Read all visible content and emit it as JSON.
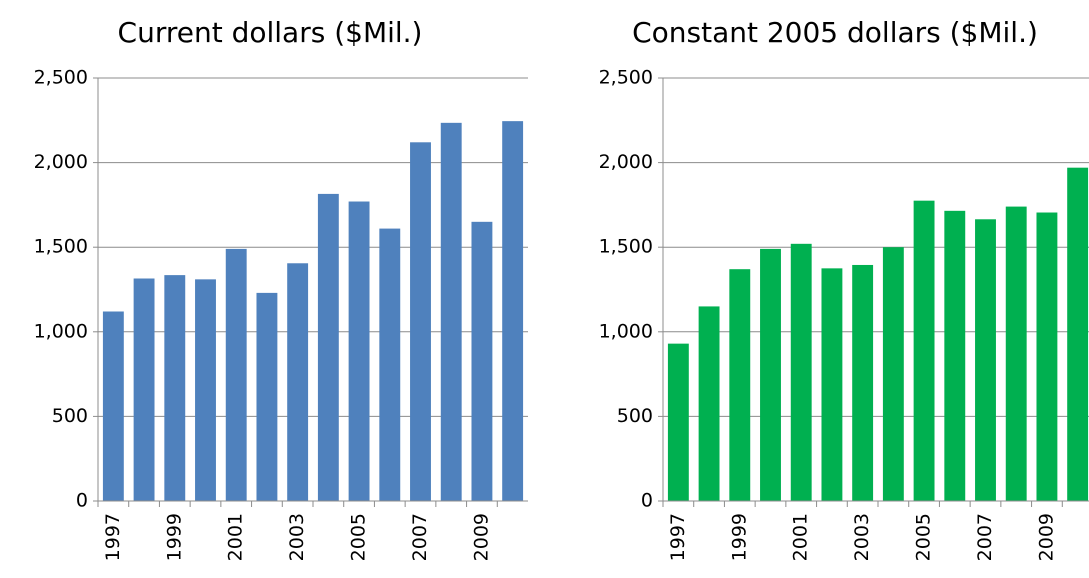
{
  "chart_data": [
    {
      "type": "bar",
      "title": "Current dollars ($Mil.)",
      "categories": [
        "1997",
        null,
        "1999",
        null,
        "2001",
        null,
        "2003",
        null,
        "2005",
        null,
        "2007",
        null,
        "2009",
        null
      ],
      "values": [
        1120,
        1315,
        1335,
        1310,
        1490,
        1230,
        1405,
        1815,
        1770,
        1610,
        2120,
        2235,
        1650,
        2245
      ],
      "color": "#4f81bd",
      "ylim": [
        0,
        2500
      ],
      "yticks": [
        0,
        500,
        {
          "value": 1000,
          "label": "1,000"
        },
        {
          "value": 1500,
          "label": "1,500"
        },
        {
          "value": 2000,
          "label": "2,000"
        },
        {
          "value": 2500,
          "label": "2,500"
        }
      ],
      "grid": true
    },
    {
      "type": "bar",
      "title": "Constant 2005 dollars ($Mil.)",
      "categories": [
        "1997",
        null,
        "1999",
        null,
        "2001",
        null,
        "2003",
        null,
        "2005",
        null,
        "2007",
        null,
        "2009",
        null
      ],
      "values": [
        930,
        1150,
        1370,
        1490,
        1520,
        1375,
        1395,
        1500,
        1775,
        1715,
        1665,
        1740,
        1705,
        1970
      ],
      "color": "#00b050",
      "ylim": [
        0,
        2500
      ],
      "yticks": [
        0,
        500,
        {
          "value": 1000,
          "label": "1,000"
        },
        {
          "value": 1500,
          "label": "1,500"
        },
        {
          "value": 2000,
          "label": "2,000"
        },
        {
          "value": 2500,
          "label": "2,500"
        }
      ],
      "grid": true
    }
  ]
}
